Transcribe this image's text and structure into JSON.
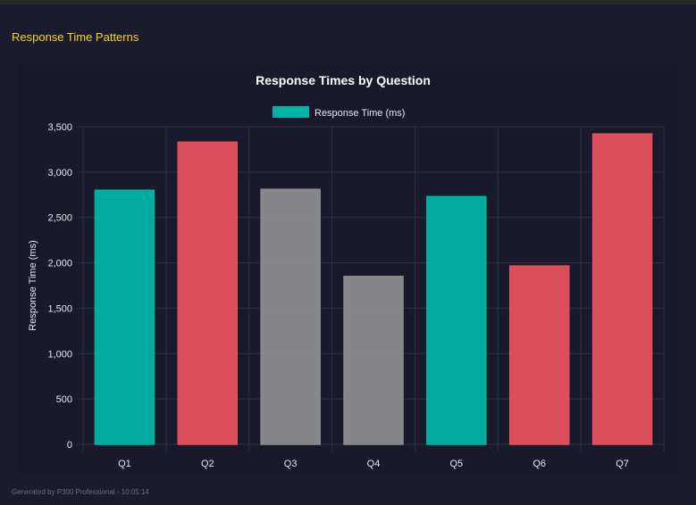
{
  "section_title": "Response Time Patterns",
  "footer": "Generated by P300 Professional - 10:05:14",
  "chart_data": {
    "type": "bar",
    "title": "Response Times by Question",
    "xlabel": "",
    "ylabel": "Response Time (ms)",
    "ylim": [
      0,
      3500
    ],
    "yticks": [
      0,
      500,
      1000,
      1500,
      2000,
      2500,
      3000,
      3500
    ],
    "ytick_labels": [
      "0",
      "500",
      "1,000",
      "1,500",
      "2,000",
      "2,500",
      "3,000",
      "3,500"
    ],
    "categories": [
      "Q1",
      "Q2",
      "Q3",
      "Q4",
      "Q5",
      "Q6",
      "Q7"
    ],
    "series": [
      {
        "name": "Response Time (ms)",
        "values": [
          2800,
          3330,
          2810,
          1850,
          2730,
          1965,
          3420
        ],
        "colors": [
          "#00b3a6",
          "#e5505d",
          "#8c8c8f",
          "#8c8c8f",
          "#00b3a6",
          "#e5505d",
          "#e5505d"
        ]
      }
    ],
    "legend": "top",
    "legend_color": "#00b3a6",
    "grid": true
  }
}
